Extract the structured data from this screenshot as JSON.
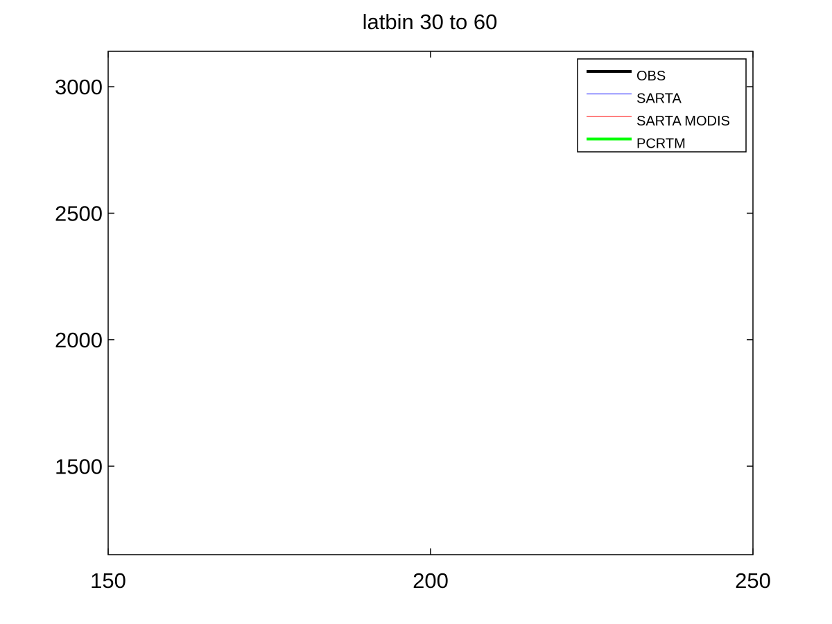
{
  "chart_data": {
    "type": "line",
    "title": "latbin 30  to 60",
    "xlabel": "",
    "ylabel": "",
    "xlim": [
      150,
      250
    ],
    "ylim": [
      1150,
      3140
    ],
    "x_ticks": [
      150,
      200,
      250
    ],
    "y_ticks": [
      1500,
      2000,
      2500,
      3000
    ],
    "grid": false,
    "legend_position": "top-right",
    "series": [
      {
        "name": "OBS",
        "color": "#000000",
        "style": "thick",
        "values": []
      },
      {
        "name": "SARTA",
        "color": "#0000ff",
        "style": "thin",
        "values": []
      },
      {
        "name": "SARTA MODIS",
        "color": "#ff0000",
        "style": "thin",
        "values": []
      },
      {
        "name": "PCRTM",
        "color": "#00ff00",
        "style": "thick",
        "values": []
      }
    ]
  }
}
